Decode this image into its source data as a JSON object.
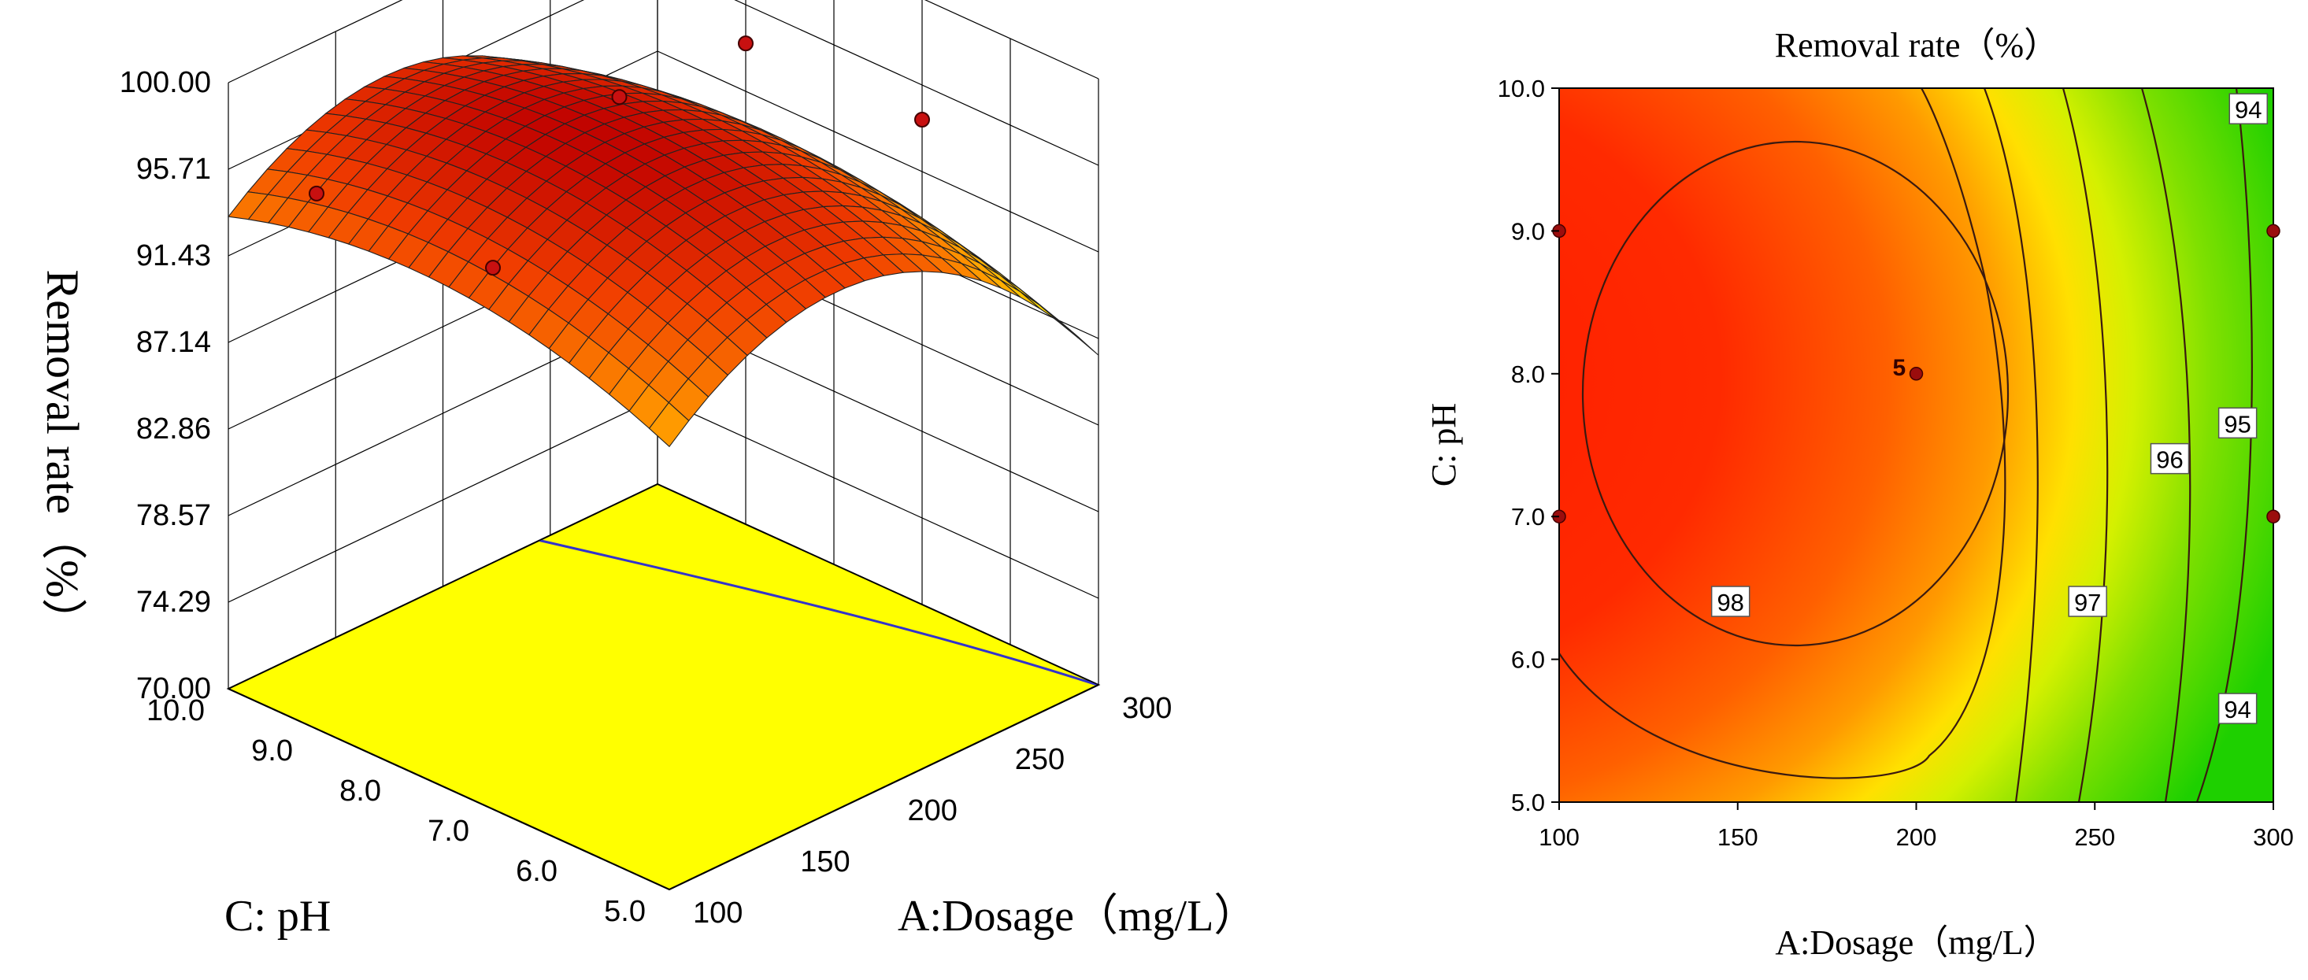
{
  "chart_data": [
    {
      "type": "surface3d",
      "zlabel": "Removal rate（%）",
      "xlabel": "A:Dosage（mg/L）",
      "ylabel": "C: pH",
      "z_ticks": [
        "100.00",
        "95.71",
        "91.43",
        "87.14",
        "82.86",
        "78.57",
        "74.29",
        "70.00"
      ],
      "zlim": [
        70,
        100
      ],
      "x_ticks": [
        "100",
        "150",
        "200",
        "250",
        "300"
      ],
      "xlim": [
        100,
        300
      ],
      "y_ticks": [
        "5.0",
        "6.0",
        "7.0",
        "8.0",
        "9.0",
        "10.0"
      ],
      "ylim": [
        5,
        10
      ],
      "design_points": [
        {
          "x": 100,
          "y": 9,
          "z": 96.5
        },
        {
          "x": 100,
          "y": 7,
          "z": 96.8
        },
        {
          "x": 200,
          "y": 8,
          "z": 98.2
        },
        {
          "x": 300,
          "y": 9,
          "z": 93.8
        },
        {
          "x": 300,
          "y": 7,
          "z": 94.0
        }
      ],
      "colors": {
        "low": "#ffff00",
        "mid": "#ff8000",
        "high": "#c00000",
        "floor": "#ffff00",
        "floor_contour": "#3333cc"
      }
    },
    {
      "type": "contour",
      "title": "Removal rate（%）",
      "xlabel": "A:Dosage（mg/L）",
      "ylabel": "C: pH",
      "x_ticks": [
        "100",
        "150",
        "200",
        "250",
        "300"
      ],
      "xlim": [
        100,
        300
      ],
      "y_ticks": [
        "5.0",
        "6.0",
        "7.0",
        "8.0",
        "9.0",
        "10.0"
      ],
      "ylim": [
        5,
        10
      ],
      "contour_labels": [
        "94",
        "95",
        "96",
        "97",
        "98",
        "94"
      ],
      "design_points": [
        {
          "x": 100,
          "y": 9,
          "label": ""
        },
        {
          "x": 100,
          "y": 7,
          "label": ""
        },
        {
          "x": 200,
          "y": 8,
          "label": "5"
        },
        {
          "x": 300,
          "y": 9,
          "label": ""
        },
        {
          "x": 300,
          "y": 7,
          "label": ""
        }
      ],
      "colors": {
        "max": "#ff1a00",
        "mid": "#ff9a00",
        "yellow": "#ffff00",
        "min": "#1ed000"
      }
    }
  ]
}
